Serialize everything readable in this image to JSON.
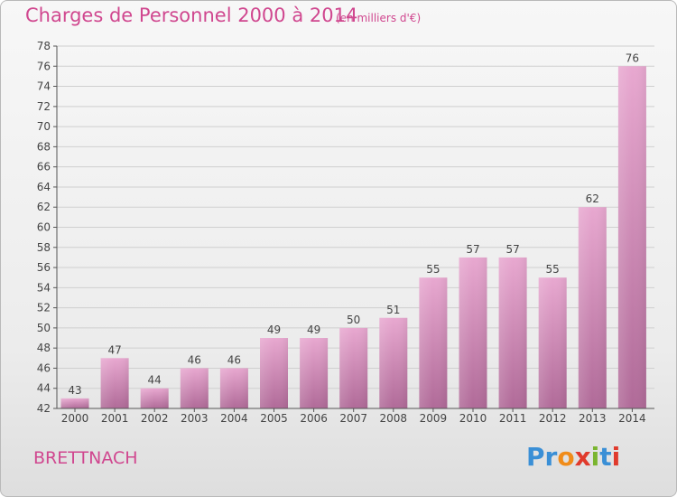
{
  "header": {
    "title": "Charges de Personnel 2000 à 2014",
    "subtitle": "(en milliers d'€)"
  },
  "footer": {
    "town": "BRETTNACH",
    "logo_text": "Proxiti",
    "logo_colors": [
      "#3a8fd6",
      "#3a8fd6",
      "#f08c1a",
      "#e03a2c",
      "#7ab52f",
      "#3a8fd6",
      "#e03a2c"
    ]
  },
  "colors": {
    "bar_top": "#e8a8d0",
    "bar_bottom": "#b06a98",
    "accent": "#d0478f"
  },
  "chart_data": {
    "type": "bar",
    "title": "Charges de Personnel 2000 à 2014",
    "subtitle": "(en milliers d'€)",
    "categories": [
      "2000",
      "2001",
      "2002",
      "2003",
      "2004",
      "2005",
      "2006",
      "2007",
      "2008",
      "2009",
      "2010",
      "2011",
      "2012",
      "2013",
      "2014"
    ],
    "values": [
      43,
      47,
      44,
      46,
      46,
      49,
      49,
      50,
      51,
      55,
      57,
      57,
      55,
      62,
      76
    ],
    "ylim": [
      42,
      78
    ],
    "yticks": [
      42,
      44,
      46,
      48,
      50,
      52,
      54,
      56,
      58,
      60,
      62,
      64,
      66,
      68,
      70,
      72,
      74,
      76,
      78
    ],
    "grid": true,
    "legend": "none"
  }
}
